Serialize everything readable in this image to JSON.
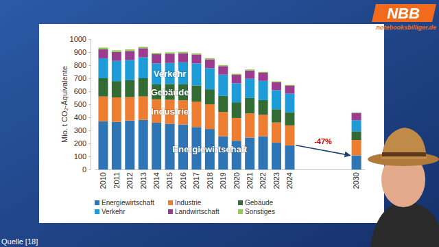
{
  "chart_data": {
    "type": "bar",
    "stacked": true,
    "grid": false,
    "legend": "bottom",
    "y_label": "Mio. t CO₂-Äquivalente",
    "categories": [
      "2010",
      "2011",
      "2012",
      "2013",
      "2014",
      "2015",
      "2016",
      "2017",
      "2018",
      "2019",
      "2020",
      "2021",
      "2022",
      "2023",
      "2024",
      null,
      null,
      null,
      null,
      "2030"
    ],
    "ylim": [
      0,
      1000
    ],
    "yticks": [
      0,
      100,
      200,
      300,
      400,
      500,
      600,
      700,
      800,
      900,
      1000
    ],
    "series": [
      {
        "name": "Energiewirtschaft",
        "color": "#2e75b6",
        "values": [
          370,
          365,
          375,
          380,
          358,
          350,
          345,
          325,
          310,
          255,
          220,
          245,
          255,
          205,
          185,
          null,
          null,
          null,
          null,
          108
        ]
      },
      {
        "name": "Industrie",
        "color": "#ed7d31",
        "values": [
          190,
          188,
          180,
          180,
          180,
          185,
          186,
          195,
          190,
          186,
          175,
          185,
          165,
          155,
          153,
          null,
          null,
          null,
          null,
          118
        ]
      },
      {
        "name": "Gebäude",
        "color": "#336b35",
        "values": [
          140,
          125,
          130,
          140,
          115,
          120,
          125,
          125,
          115,
          123,
          120,
          118,
          112,
          102,
          100,
          null,
          null,
          null,
          null,
          67
        ]
      },
      {
        "name": "Verkehr",
        "color": "#1e9cd8",
        "values": [
          153,
          155,
          155,
          160,
          160,
          162,
          166,
          168,
          162,
          164,
          146,
          148,
          148,
          146,
          143,
          null,
          null,
          null,
          null,
          85
        ]
      },
      {
        "name": "Landwirtschaft",
        "color": "#9b3c8f",
        "values": [
          68,
          68,
          69,
          70,
          71,
          71,
          70,
          69,
          68,
          65,
          65,
          63,
          62,
          61,
          61,
          null,
          null,
          null,
          null,
          56
        ]
      },
      {
        "name": "Sonstiges",
        "color": "#8fce55",
        "values": [
          14,
          13,
          12,
          11,
          10,
          10,
          10,
          9,
          9,
          8,
          8,
          8,
          7,
          7,
          7,
          null,
          null,
          null,
          null,
          4
        ]
      }
    ],
    "segment_labels": [
      "Verkehr",
      "Gebäude",
      "Industrie",
      "Energiewirtschaft"
    ],
    "annotation": "-47%"
  },
  "caption": "Quelle [18]",
  "logo": {
    "text": "NBB",
    "subtext": "notebooksbilliger.de"
  }
}
